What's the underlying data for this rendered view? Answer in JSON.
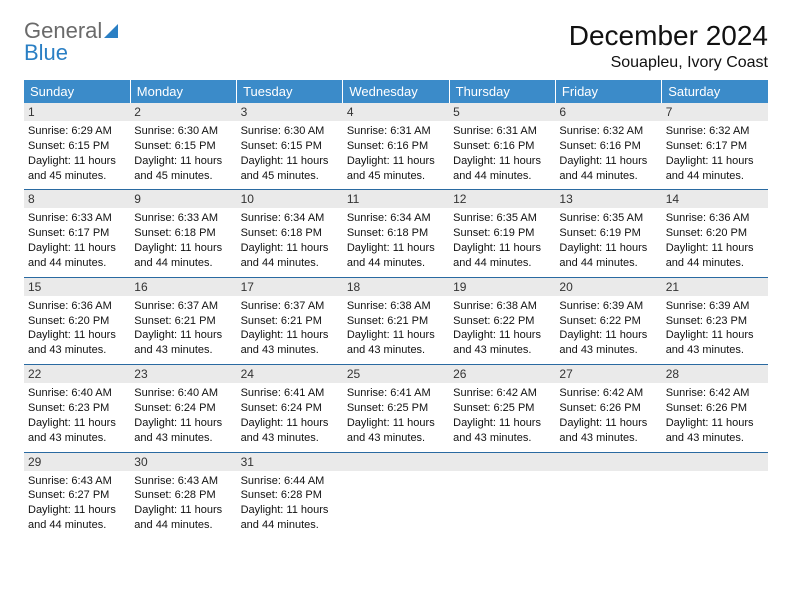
{
  "brand": {
    "line1": "General",
    "line2": "Blue",
    "color_general": "#6a6a6a",
    "color_blue": "#2a7fc4",
    "sail_color": "#2a7fc4"
  },
  "title": "December 2024",
  "location": "Souapleu, Ivory Coast",
  "colors": {
    "header_bg": "#3b8bc9",
    "header_text": "#ffffff",
    "daynum_bg": "#eaeaea",
    "row_divider": "#2a6aa1",
    "text": "#111111",
    "background": "#ffffff"
  },
  "typography": {
    "title_fontsize": 28,
    "location_fontsize": 16,
    "weekday_fontsize": 13,
    "daynum_fontsize": 12,
    "body_fontsize": 11,
    "font_family": "Arial, Helvetica, sans-serif"
  },
  "weekdays": [
    "Sunday",
    "Monday",
    "Tuesday",
    "Wednesday",
    "Thursday",
    "Friday",
    "Saturday"
  ],
  "weeks": [
    [
      {
        "day": "1",
        "sunrise": "Sunrise: 6:29 AM",
        "sunset": "Sunset: 6:15 PM",
        "daylight": "Daylight: 11 hours and 45 minutes."
      },
      {
        "day": "2",
        "sunrise": "Sunrise: 6:30 AM",
        "sunset": "Sunset: 6:15 PM",
        "daylight": "Daylight: 11 hours and 45 minutes."
      },
      {
        "day": "3",
        "sunrise": "Sunrise: 6:30 AM",
        "sunset": "Sunset: 6:15 PM",
        "daylight": "Daylight: 11 hours and 45 minutes."
      },
      {
        "day": "4",
        "sunrise": "Sunrise: 6:31 AM",
        "sunset": "Sunset: 6:16 PM",
        "daylight": "Daylight: 11 hours and 45 minutes."
      },
      {
        "day": "5",
        "sunrise": "Sunrise: 6:31 AM",
        "sunset": "Sunset: 6:16 PM",
        "daylight": "Daylight: 11 hours and 44 minutes."
      },
      {
        "day": "6",
        "sunrise": "Sunrise: 6:32 AM",
        "sunset": "Sunset: 6:16 PM",
        "daylight": "Daylight: 11 hours and 44 minutes."
      },
      {
        "day": "7",
        "sunrise": "Sunrise: 6:32 AM",
        "sunset": "Sunset: 6:17 PM",
        "daylight": "Daylight: 11 hours and 44 minutes."
      }
    ],
    [
      {
        "day": "8",
        "sunrise": "Sunrise: 6:33 AM",
        "sunset": "Sunset: 6:17 PM",
        "daylight": "Daylight: 11 hours and 44 minutes."
      },
      {
        "day": "9",
        "sunrise": "Sunrise: 6:33 AM",
        "sunset": "Sunset: 6:18 PM",
        "daylight": "Daylight: 11 hours and 44 minutes."
      },
      {
        "day": "10",
        "sunrise": "Sunrise: 6:34 AM",
        "sunset": "Sunset: 6:18 PM",
        "daylight": "Daylight: 11 hours and 44 minutes."
      },
      {
        "day": "11",
        "sunrise": "Sunrise: 6:34 AM",
        "sunset": "Sunset: 6:18 PM",
        "daylight": "Daylight: 11 hours and 44 minutes."
      },
      {
        "day": "12",
        "sunrise": "Sunrise: 6:35 AM",
        "sunset": "Sunset: 6:19 PM",
        "daylight": "Daylight: 11 hours and 44 minutes."
      },
      {
        "day": "13",
        "sunrise": "Sunrise: 6:35 AM",
        "sunset": "Sunset: 6:19 PM",
        "daylight": "Daylight: 11 hours and 44 minutes."
      },
      {
        "day": "14",
        "sunrise": "Sunrise: 6:36 AM",
        "sunset": "Sunset: 6:20 PM",
        "daylight": "Daylight: 11 hours and 44 minutes."
      }
    ],
    [
      {
        "day": "15",
        "sunrise": "Sunrise: 6:36 AM",
        "sunset": "Sunset: 6:20 PM",
        "daylight": "Daylight: 11 hours and 43 minutes."
      },
      {
        "day": "16",
        "sunrise": "Sunrise: 6:37 AM",
        "sunset": "Sunset: 6:21 PM",
        "daylight": "Daylight: 11 hours and 43 minutes."
      },
      {
        "day": "17",
        "sunrise": "Sunrise: 6:37 AM",
        "sunset": "Sunset: 6:21 PM",
        "daylight": "Daylight: 11 hours and 43 minutes."
      },
      {
        "day": "18",
        "sunrise": "Sunrise: 6:38 AM",
        "sunset": "Sunset: 6:21 PM",
        "daylight": "Daylight: 11 hours and 43 minutes."
      },
      {
        "day": "19",
        "sunrise": "Sunrise: 6:38 AM",
        "sunset": "Sunset: 6:22 PM",
        "daylight": "Daylight: 11 hours and 43 minutes."
      },
      {
        "day": "20",
        "sunrise": "Sunrise: 6:39 AM",
        "sunset": "Sunset: 6:22 PM",
        "daylight": "Daylight: 11 hours and 43 minutes."
      },
      {
        "day": "21",
        "sunrise": "Sunrise: 6:39 AM",
        "sunset": "Sunset: 6:23 PM",
        "daylight": "Daylight: 11 hours and 43 minutes."
      }
    ],
    [
      {
        "day": "22",
        "sunrise": "Sunrise: 6:40 AM",
        "sunset": "Sunset: 6:23 PM",
        "daylight": "Daylight: 11 hours and 43 minutes."
      },
      {
        "day": "23",
        "sunrise": "Sunrise: 6:40 AM",
        "sunset": "Sunset: 6:24 PM",
        "daylight": "Daylight: 11 hours and 43 minutes."
      },
      {
        "day": "24",
        "sunrise": "Sunrise: 6:41 AM",
        "sunset": "Sunset: 6:24 PM",
        "daylight": "Daylight: 11 hours and 43 minutes."
      },
      {
        "day": "25",
        "sunrise": "Sunrise: 6:41 AM",
        "sunset": "Sunset: 6:25 PM",
        "daylight": "Daylight: 11 hours and 43 minutes."
      },
      {
        "day": "26",
        "sunrise": "Sunrise: 6:42 AM",
        "sunset": "Sunset: 6:25 PM",
        "daylight": "Daylight: 11 hours and 43 minutes."
      },
      {
        "day": "27",
        "sunrise": "Sunrise: 6:42 AM",
        "sunset": "Sunset: 6:26 PM",
        "daylight": "Daylight: 11 hours and 43 minutes."
      },
      {
        "day": "28",
        "sunrise": "Sunrise: 6:42 AM",
        "sunset": "Sunset: 6:26 PM",
        "daylight": "Daylight: 11 hours and 43 minutes."
      }
    ],
    [
      {
        "day": "29",
        "sunrise": "Sunrise: 6:43 AM",
        "sunset": "Sunset: 6:27 PM",
        "daylight": "Daylight: 11 hours and 44 minutes."
      },
      {
        "day": "30",
        "sunrise": "Sunrise: 6:43 AM",
        "sunset": "Sunset: 6:28 PM",
        "daylight": "Daylight: 11 hours and 44 minutes."
      },
      {
        "day": "31",
        "sunrise": "Sunrise: 6:44 AM",
        "sunset": "Sunset: 6:28 PM",
        "daylight": "Daylight: 11 hours and 44 minutes."
      },
      {
        "day": "",
        "sunrise": "",
        "sunset": "",
        "daylight": ""
      },
      {
        "day": "",
        "sunrise": "",
        "sunset": "",
        "daylight": ""
      },
      {
        "day": "",
        "sunrise": "",
        "sunset": "",
        "daylight": ""
      },
      {
        "day": "",
        "sunrise": "",
        "sunset": "",
        "daylight": ""
      }
    ]
  ]
}
